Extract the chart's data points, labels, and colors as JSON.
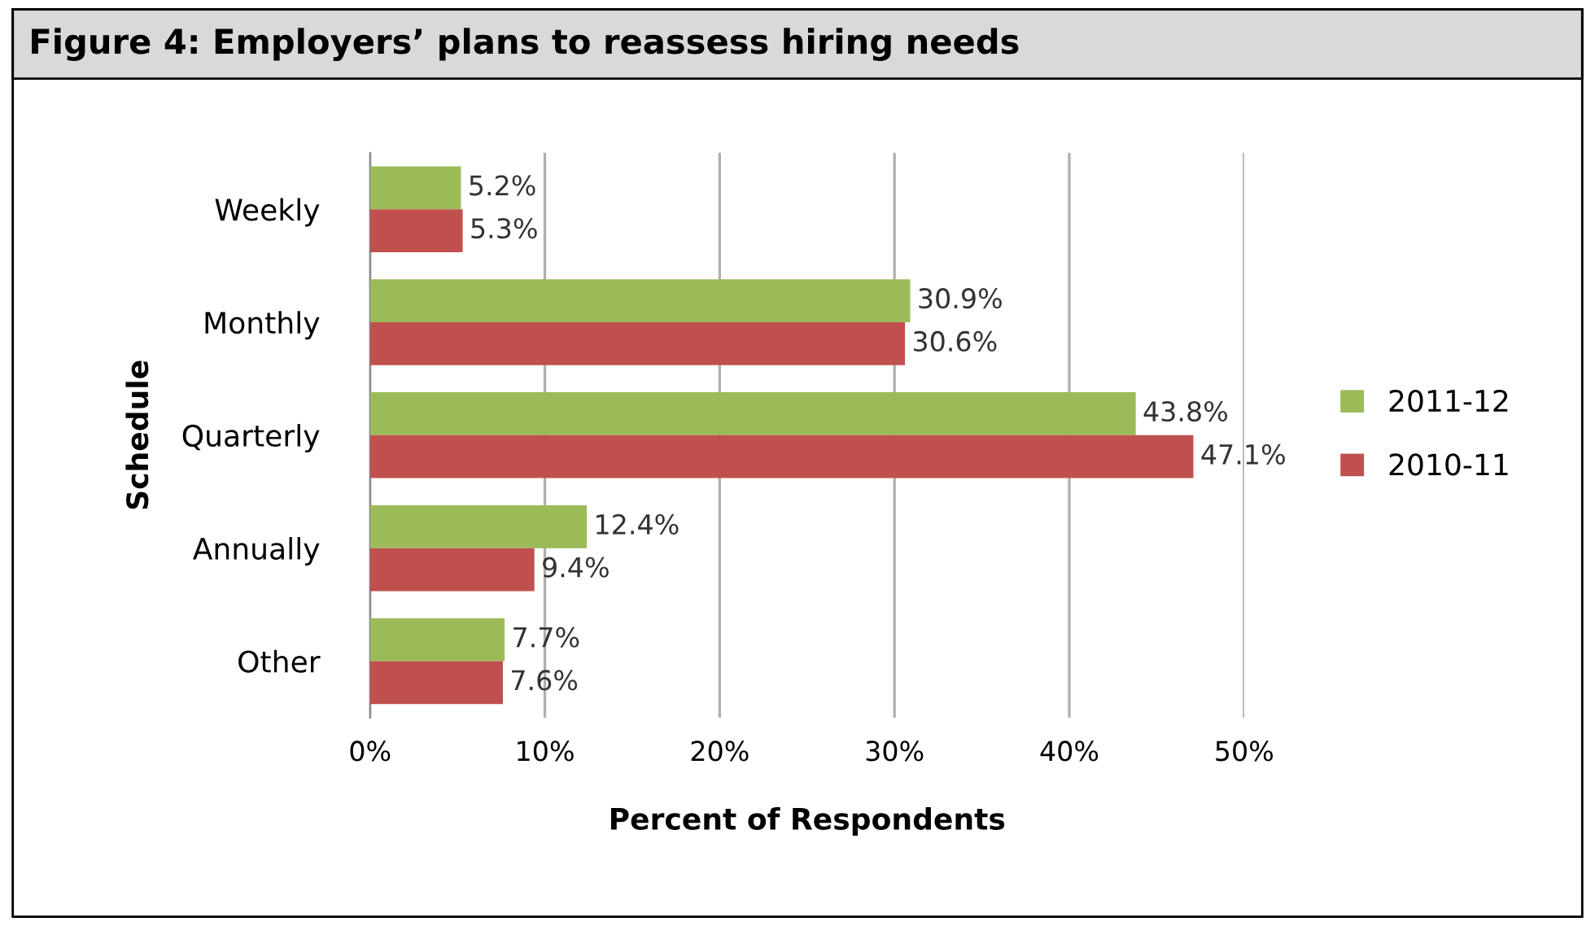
{
  "chart_data": {
    "type": "bar",
    "orientation": "horizontal",
    "title": "Figure 4: Employers’ plans to reassess hiring needs",
    "xlabel": "Percent of Respondents",
    "ylabel": "Schedule",
    "categories": [
      "Weekly",
      "Monthly",
      "Quarterly",
      "Annually",
      "Other"
    ],
    "series": [
      {
        "name": "2011-12",
        "color": "#9bbb59",
        "values": [
          5.2,
          30.9,
          43.8,
          12.4,
          7.7
        ],
        "value_labels": [
          "5.2%",
          "30.9%",
          "43.8%",
          "12.4%",
          "7.7%"
        ]
      },
      {
        "name": "2010-11",
        "color": "#c0504d",
        "values": [
          5.3,
          30.6,
          47.1,
          9.4,
          7.6
        ],
        "value_labels": [
          "5.3%",
          "30.6%",
          "47.1%",
          "9.4%",
          "7.6%"
        ]
      }
    ],
    "xlim": [
      0,
      50
    ],
    "xticks": [
      {
        "value": 0,
        "label": "0%"
      },
      {
        "value": 10,
        "label": "10%"
      },
      {
        "value": 20,
        "label": "20%"
      },
      {
        "value": 30,
        "label": "30%"
      },
      {
        "value": 40,
        "label": "40%"
      },
      {
        "value": 50,
        "label": "50%"
      }
    ],
    "grid": "x",
    "legend": "right"
  }
}
